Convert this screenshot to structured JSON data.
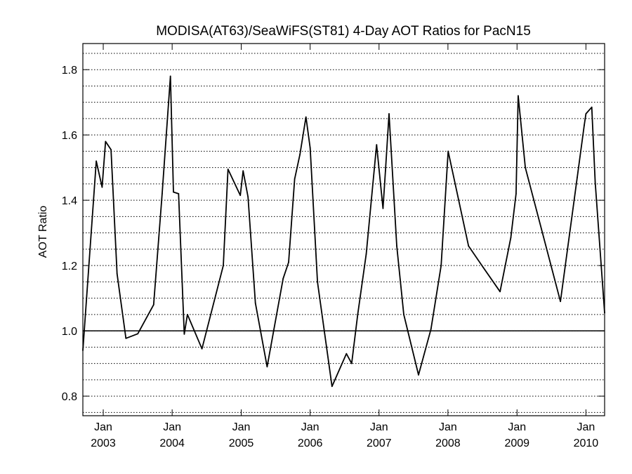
{
  "chart_data": {
    "type": "line",
    "title": "MODISA(AT63)/SeaWiFS(ST81) 4-Day AOT Ratios for PacN15",
    "ylabel": "AOT Ratio",
    "xlabel": "",
    "xlim": [
      "2002-09-15",
      "2010-04-10"
    ],
    "ylim": [
      0.74,
      1.88
    ],
    "y_ticks": [
      0.8,
      1.0,
      1.2,
      1.4,
      1.6,
      1.8
    ],
    "y_tick_labels": [
      "0.8",
      "1.0",
      "1.2",
      "1.4",
      "1.6",
      "1.8"
    ],
    "x_ticks": [
      {
        "date": "2003-01-01",
        "month": "Jan",
        "year": "2003"
      },
      {
        "date": "2004-01-01",
        "month": "Jan",
        "year": "2004"
      },
      {
        "date": "2005-01-01",
        "month": "Jan",
        "year": "2005"
      },
      {
        "date": "2006-01-01",
        "month": "Jan",
        "year": "2006"
      },
      {
        "date": "2007-01-01",
        "month": "Jan",
        "year": "2007"
      },
      {
        "date": "2008-01-01",
        "month": "Jan",
        "year": "2008"
      },
      {
        "date": "2009-01-01",
        "month": "Jan",
        "year": "2009"
      },
      {
        "date": "2010-01-01",
        "month": "Jan",
        "year": "2010"
      }
    ],
    "grid": "horizontal dotted",
    "reference_line": 1.0,
    "series": [
      {
        "x": [
          "2002-09-15",
          "2002-11-25",
          "2002-12-26",
          "2003-01-13",
          "2003-02-11",
          "2003-03-15",
          "2003-05-01",
          "2003-07-03",
          "2003-09-25",
          "2003-11-09",
          "2003-12-23",
          "2004-01-08",
          "2004-02-04",
          "2004-03-05",
          "2004-03-22",
          "2004-06-07",
          "2004-09-28",
          "2004-10-23",
          "2004-12-27",
          "2005-01-11",
          "2005-02-06",
          "2005-03-17",
          "2005-05-18",
          "2005-08-11",
          "2005-09-09",
          "2005-10-11",
          "2005-11-08",
          "2005-12-10",
          "2006-01-01",
          "2006-02-09",
          "2006-04-27",
          "2006-07-12",
          "2006-08-09",
          "2006-09-10",
          "2006-10-25",
          "2006-12-19",
          "2007-01-22",
          "2007-02-04",
          "2007-02-23",
          "2007-04-05",
          "2007-05-12",
          "2007-07-29",
          "2007-10-03",
          "2007-11-26",
          "2008-01-02",
          "2008-04-19",
          "2008-07-05",
          "2008-10-03",
          "2008-11-29",
          "2008-12-27",
          "2009-01-07",
          "2009-02-14",
          "2009-08-19",
          "2009-11-16",
          "2009-12-23",
          "2010-01-01",
          "2010-02-01",
          "2010-02-19",
          "2010-04-10"
        ],
        "values": [
          0.94,
          1.52,
          1.44,
          1.58,
          1.555,
          1.175,
          0.977,
          0.991,
          1.08,
          1.42,
          1.78,
          1.425,
          1.42,
          0.99,
          1.05,
          0.945,
          1.2,
          1.495,
          1.415,
          1.49,
          1.41,
          1.085,
          0.89,
          1.16,
          1.21,
          1.465,
          1.54,
          1.655,
          1.56,
          1.15,
          0.83,
          0.93,
          0.9,
          1.05,
          1.235,
          1.57,
          1.375,
          1.49,
          1.665,
          1.26,
          1.05,
          0.865,
          1.005,
          1.2,
          1.55,
          1.26,
          1.195,
          1.12,
          1.285,
          1.42,
          1.72,
          1.5,
          1.09,
          1.47,
          1.63,
          1.665,
          1.685,
          1.455,
          1.055
        ]
      }
    ]
  }
}
